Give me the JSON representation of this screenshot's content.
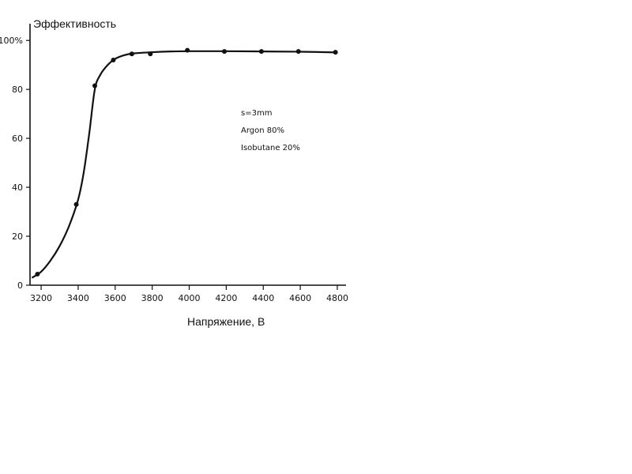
{
  "chart_data": {
    "type": "scatter",
    "ylabel": "Эффективность",
    "xlabel": "Напряжение, В",
    "xlim": [
      3140,
      4830
    ],
    "ylim": [
      0,
      102
    ],
    "x_ticks": [
      3200,
      3400,
      3600,
      3800,
      4000,
      4200,
      4400,
      4600,
      4800
    ],
    "y_ticks": [
      0,
      20,
      40,
      60,
      80,
      100
    ],
    "y_tick_labels": [
      "0",
      "20",
      "40",
      "60",
      "80",
      "100%"
    ],
    "series": [
      {
        "points": [
          {
            "x": 3180,
            "y": 4.5
          },
          {
            "x": 3390,
            "y": 33
          },
          {
            "x": 3490,
            "y": 81.5
          },
          {
            "x": 3590,
            "y": 92
          },
          {
            "x": 3690,
            "y": 94.5
          },
          {
            "x": 3790,
            "y": 94.5
          },
          {
            "x": 3990,
            "y": 96
          },
          {
            "x": 4190,
            "y": 95.5
          },
          {
            "x": 4390,
            "y": 95.5
          },
          {
            "x": 4590,
            "y": 95.5
          },
          {
            "x": 4790,
            "y": 95.2
          }
        ],
        "fit_curve": [
          [
            3150,
            3
          ],
          [
            3200,
            5.5
          ],
          [
            3250,
            10
          ],
          [
            3300,
            16
          ],
          [
            3350,
            24
          ],
          [
            3400,
            35
          ],
          [
            3430,
            46
          ],
          [
            3460,
            62
          ],
          [
            3490,
            80
          ],
          [
            3520,
            86
          ],
          [
            3560,
            90
          ],
          [
            3600,
            92.5
          ],
          [
            3650,
            94
          ],
          [
            3700,
            94.7
          ],
          [
            3800,
            95.2
          ],
          [
            3900,
            95.5
          ],
          [
            4000,
            95.6
          ],
          [
            4200,
            95.6
          ],
          [
            4400,
            95.5
          ],
          [
            4600,
            95.4
          ],
          [
            4800,
            95.1
          ]
        ]
      }
    ],
    "annotations": [
      "s=3mm",
      "Argon 80%",
      "Isobutane 20%"
    ],
    "grid": false,
    "legend": "none"
  }
}
